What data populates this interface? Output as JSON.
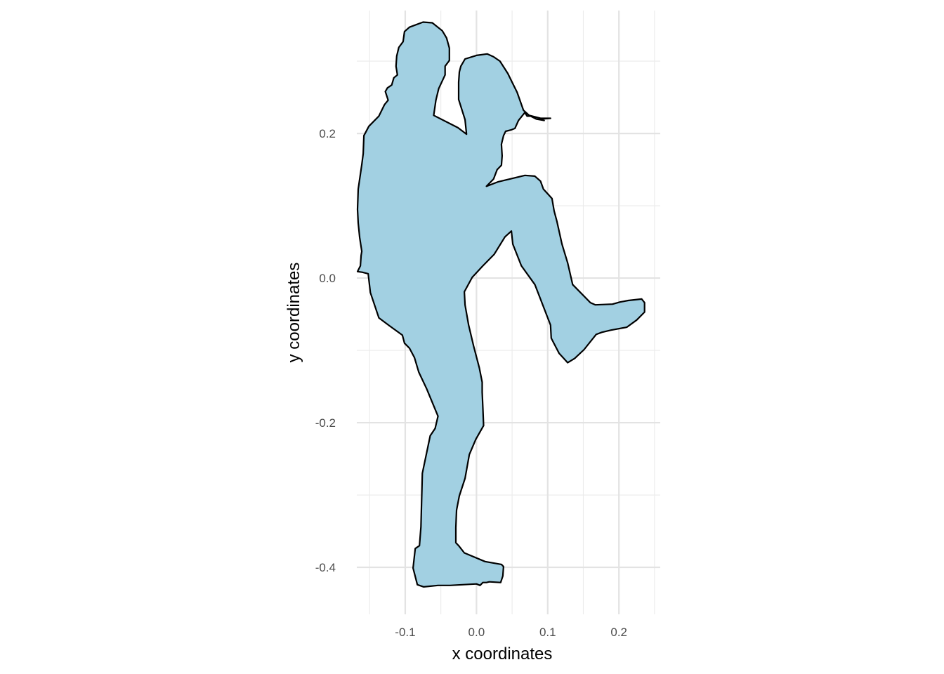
{
  "chart_data": {
    "type": "polygon",
    "xlabel": "x coordinates",
    "ylabel": "y coordinates",
    "xlim": [
      -0.168,
      0.258
    ],
    "ylim": [
      -0.465,
      0.37
    ],
    "x_ticks": [
      -0.1,
      0.0,
      0.1,
      0.2
    ],
    "x_tick_labels": [
      "-0.1",
      "0.0",
      "0.1",
      "0.2"
    ],
    "y_ticks": [
      -0.4,
      -0.2,
      0.0,
      0.2
    ],
    "y_tick_labels": [
      "-0.4",
      "-0.2",
      "0.0",
      "0.2"
    ],
    "x_minor_ticks": [
      -0.15,
      -0.05,
      0.05,
      0.15,
      0.25
    ],
    "y_minor_ticks": [
      -0.3,
      -0.1,
      0.1,
      0.3
    ],
    "grid": true,
    "fill_color": "#a2d0e2",
    "stroke_color": "#000000",
    "points": [
      [
        -0.075,
        0.354
      ],
      [
        -0.062,
        0.353
      ],
      [
        -0.048,
        0.342
      ],
      [
        -0.042,
        0.332
      ],
      [
        -0.038,
        0.318
      ],
      [
        -0.038,
        0.301
      ],
      [
        -0.044,
        0.293
      ],
      [
        -0.044,
        0.281
      ],
      [
        -0.053,
        0.262
      ],
      [
        -0.057,
        0.246
      ],
      [
        -0.06,
        0.225
      ],
      [
        -0.042,
        0.216
      ],
      [
        -0.026,
        0.208
      ],
      [
        -0.014,
        0.199
      ],
      [
        -0.016,
        0.219
      ],
      [
        -0.025,
        0.247
      ],
      [
        -0.025,
        0.271
      ],
      [
        -0.024,
        0.285
      ],
      [
        -0.022,
        0.293
      ],
      [
        -0.016,
        0.303
      ],
      [
        0.0,
        0.308
      ],
      [
        0.015,
        0.31
      ],
      [
        0.024,
        0.306
      ],
      [
        0.033,
        0.3
      ],
      [
        0.044,
        0.283
      ],
      [
        0.052,
        0.267
      ],
      [
        0.057,
        0.257
      ],
      [
        0.066,
        0.232
      ],
      [
        0.074,
        0.225
      ],
      [
        0.09,
        0.221
      ],
      [
        0.104,
        0.221
      ],
      [
        0.091,
        0.22
      ],
      [
        0.095,
        0.218
      ],
      [
        0.084,
        0.22
      ],
      [
        0.076,
        0.224
      ],
      [
        0.071,
        0.224
      ],
      [
        0.068,
        0.229
      ],
      [
        0.059,
        0.218
      ],
      [
        0.054,
        0.207
      ],
      [
        0.049,
        0.205
      ],
      [
        0.041,
        0.203
      ],
      [
        0.038,
        0.197
      ],
      [
        0.035,
        0.185
      ],
      [
        0.036,
        0.169
      ],
      [
        0.035,
        0.156
      ],
      [
        0.029,
        0.15
      ],
      [
        0.024,
        0.137
      ],
      [
        0.014,
        0.127
      ],
      [
        0.03,
        0.133
      ],
      [
        0.068,
        0.142
      ],
      [
        0.082,
        0.141
      ],
      [
        0.09,
        0.134
      ],
      [
        0.094,
        0.123
      ],
      [
        0.106,
        0.11
      ],
      [
        0.109,
        0.093
      ],
      [
        0.113,
        0.078
      ],
      [
        0.12,
        0.047
      ],
      [
        0.128,
        0.021
      ],
      [
        0.135,
        -0.009
      ],
      [
        0.16,
        -0.034
      ],
      [
        0.167,
        -0.037
      ],
      [
        0.191,
        -0.036
      ],
      [
        0.202,
        -0.033
      ],
      [
        0.213,
        -0.031
      ],
      [
        0.232,
        -0.029
      ],
      [
        0.236,
        -0.034
      ],
      [
        0.236,
        -0.047
      ],
      [
        0.225,
        -0.058
      ],
      [
        0.211,
        -0.068
      ],
      [
        0.189,
        -0.072
      ],
      [
        0.176,
        -0.075
      ],
      [
        0.168,
        -0.078
      ],
      [
        0.151,
        -0.099
      ],
      [
        0.138,
        -0.111
      ],
      [
        0.128,
        -0.117
      ],
      [
        0.116,
        -0.104
      ],
      [
        0.105,
        -0.083
      ],
      [
        0.104,
        -0.065
      ],
      [
        0.082,
        -0.009
      ],
      [
        0.063,
        0.017
      ],
      [
        0.051,
        0.047
      ],
      [
        0.049,
        0.065
      ],
      [
        0.04,
        0.057
      ],
      [
        0.025,
        0.033
      ],
      [
        0.009,
        0.017
      ],
      [
        -0.006,
        0.001
      ],
      [
        -0.017,
        -0.019
      ],
      [
        -0.016,
        -0.037
      ],
      [
        -0.011,
        -0.065
      ],
      [
        -0.004,
        -0.094
      ],
      [
        0.004,
        -0.124
      ],
      [
        0.008,
        -0.144
      ],
      [
        0.008,
        -0.158
      ],
      [
        0.009,
        -0.18
      ],
      [
        0.01,
        -0.204
      ],
      [
        -0.001,
        -0.223
      ],
      [
        -0.01,
        -0.244
      ],
      [
        -0.016,
        -0.277
      ],
      [
        -0.024,
        -0.301
      ],
      [
        -0.028,
        -0.321
      ],
      [
        -0.029,
        -0.345
      ],
      [
        -0.029,
        -0.366
      ],
      [
        -0.025,
        -0.37
      ],
      [
        -0.017,
        -0.38
      ],
      [
        0.012,
        -0.392
      ],
      [
        0.035,
        -0.396
      ],
      [
        0.038,
        -0.399
      ],
      [
        0.037,
        -0.412
      ],
      [
        0.034,
        -0.421
      ],
      [
        0.018,
        -0.42
      ],
      [
        0.014,
        -0.421
      ],
      [
        0.009,
        -0.421
      ],
      [
        0.005,
        -0.425
      ],
      [
        0.0,
        -0.423
      ],
      [
        -0.037,
        -0.425
      ],
      [
        -0.054,
        -0.425
      ],
      [
        -0.074,
        -0.427
      ],
      [
        -0.083,
        -0.424
      ],
      [
        -0.089,
        -0.401
      ],
      [
        -0.086,
        -0.374
      ],
      [
        -0.08,
        -0.37
      ],
      [
        -0.078,
        -0.344
      ],
      [
        -0.076,
        -0.27
      ],
      [
        -0.065,
        -0.218
      ],
      [
        -0.058,
        -0.208
      ],
      [
        -0.054,
        -0.191
      ],
      [
        -0.07,
        -0.153
      ],
      [
        -0.081,
        -0.13
      ],
      [
        -0.087,
        -0.11
      ],
      [
        -0.094,
        -0.097
      ],
      [
        -0.101,
        -0.09
      ],
      [
        -0.104,
        -0.079
      ],
      [
        -0.122,
        -0.066
      ],
      [
        -0.137,
        -0.055
      ],
      [
        -0.149,
        -0.02
      ],
      [
        -0.152,
        0.006
      ],
      [
        -0.16,
        0.008
      ],
      [
        -0.167,
        0.009
      ],
      [
        -0.163,
        0.017
      ],
      [
        -0.162,
        0.031
      ],
      [
        -0.161,
        0.037
      ],
      [
        -0.164,
        0.056
      ],
      [
        -0.166,
        0.076
      ],
      [
        -0.167,
        0.095
      ],
      [
        -0.166,
        0.123
      ],
      [
        -0.161,
        0.157
      ],
      [
        -0.159,
        0.172
      ],
      [
        -0.158,
        0.197
      ],
      [
        -0.151,
        0.21
      ],
      [
        -0.137,
        0.224
      ],
      [
        -0.129,
        0.24
      ],
      [
        -0.124,
        0.246
      ],
      [
        -0.128,
        0.258
      ],
      [
        -0.125,
        0.263
      ],
      [
        -0.119,
        0.267
      ],
      [
        -0.116,
        0.277
      ],
      [
        -0.111,
        0.281
      ],
      [
        -0.113,
        0.293
      ],
      [
        -0.112,
        0.307
      ],
      [
        -0.109,
        0.319
      ],
      [
        -0.103,
        0.327
      ],
      [
        -0.101,
        0.341
      ],
      [
        -0.094,
        0.347
      ],
      [
        -0.075,
        0.354
      ]
    ]
  }
}
